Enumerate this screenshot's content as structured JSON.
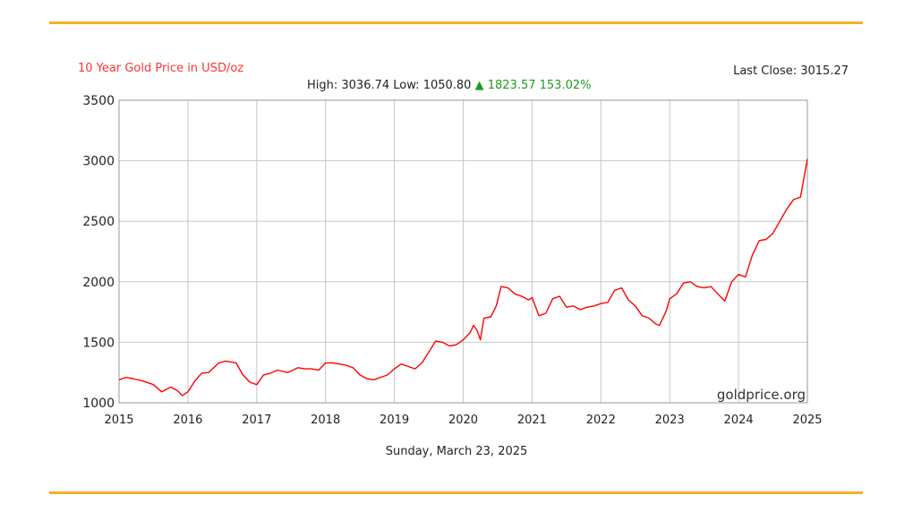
{
  "header": {
    "title": "10 Year Gold Price in USD/oz",
    "last_close": "Last Close: 3015.27",
    "high_label": "High: 3036.74",
    "low_label": "Low: 1050.80",
    "change_arrow": "▲",
    "change_text": "1823.57 153.02%"
  },
  "footer": {
    "date": "Sunday, March 23, 2025"
  },
  "chart_data": {
    "type": "line",
    "title": "10 Year Gold Price in USD/oz",
    "xlabel": "",
    "ylabel": "",
    "xlim": [
      2015,
      2025
    ],
    "ylim": [
      1000,
      3500
    ],
    "grid": true,
    "x_ticks": [
      "2015",
      "2016",
      "2017",
      "2018",
      "2019",
      "2020",
      "2021",
      "2022",
      "2023",
      "2024",
      "2025"
    ],
    "y_ticks": [
      "1000",
      "1500",
      "2000",
      "2500",
      "3000",
      "3500"
    ],
    "watermark": "goldprice.org",
    "colors": {
      "line": "#ff0000",
      "title": "#ff3333",
      "accent": "#f0b323",
      "up": "#1e9b1e",
      "grid": "#c8c8c8"
    },
    "series": [
      {
        "x": [
          2015.0,
          2015.1,
          2015.2,
          2015.35,
          2015.5,
          2015.62,
          2015.75,
          2015.85,
          2015.92,
          2016.0,
          2016.1,
          2016.2,
          2016.3,
          2016.45,
          2016.55,
          2016.7,
          2016.8,
          2016.9,
          2017.0,
          2017.1,
          2017.2,
          2017.3,
          2017.45,
          2017.6,
          2017.7,
          2017.8,
          2017.9,
          2018.0,
          2018.1,
          2018.2,
          2018.3,
          2018.4,
          2018.5,
          2018.6,
          2018.7,
          2018.8,
          2018.9,
          2019.0,
          2019.1,
          2019.2,
          2019.3,
          2019.4,
          2019.5,
          2019.6,
          2019.7,
          2019.8,
          2019.9,
          2020.0,
          2020.1,
          2020.15,
          2020.2,
          2020.25,
          2020.3,
          2020.4,
          2020.48,
          2020.55,
          2020.65,
          2020.75,
          2020.85,
          2020.95,
          2021.0,
          2021.1,
          2021.2,
          2021.3,
          2021.4,
          2021.5,
          2021.6,
          2021.7,
          2021.8,
          2021.9,
          2022.0,
          2022.1,
          2022.2,
          2022.3,
          2022.4,
          2022.5,
          2022.6,
          2022.7,
          2022.8,
          2022.85,
          2022.95,
          2023.0,
          2023.1,
          2023.2,
          2023.3,
          2023.4,
          2023.5,
          2023.6,
          2023.7,
          2023.8,
          2023.9,
          2024.0,
          2024.1,
          2024.2,
          2024.3,
          2024.4,
          2024.5,
          2024.6,
          2024.7,
          2024.8,
          2024.9,
          2025.0
        ],
        "y": [
          1190,
          1210,
          1200,
          1180,
          1150,
          1090,
          1130,
          1100,
          1060,
          1090,
          1180,
          1245,
          1250,
          1330,
          1345,
          1330,
          1230,
          1170,
          1150,
          1230,
          1245,
          1270,
          1250,
          1290,
          1280,
          1280,
          1270,
          1330,
          1330,
          1320,
          1310,
          1290,
          1230,
          1200,
          1190,
          1210,
          1230,
          1280,
          1320,
          1300,
          1280,
          1330,
          1420,
          1510,
          1500,
          1470,
          1480,
          1520,
          1580,
          1640,
          1600,
          1520,
          1700,
          1710,
          1800,
          1960,
          1950,
          1900,
          1880,
          1850,
          1870,
          1720,
          1740,
          1860,
          1880,
          1790,
          1800,
          1770,
          1790,
          1800,
          1820,
          1830,
          1930,
          1950,
          1850,
          1800,
          1720,
          1700,
          1650,
          1640,
          1760,
          1860,
          1900,
          1990,
          2000,
          1960,
          1950,
          1960,
          1900,
          1840,
          2000,
          2060,
          2040,
          2220,
          2340,
          2350,
          2400,
          2500,
          2600,
          2680,
          2700,
          3015
        ]
      }
    ]
  }
}
